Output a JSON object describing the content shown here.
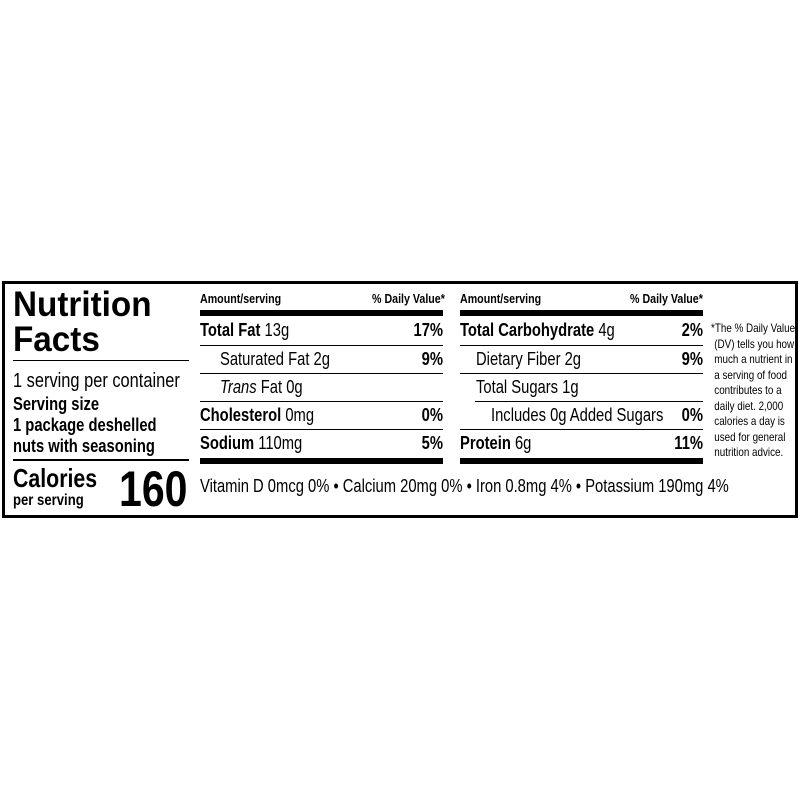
{
  "left": {
    "title_line1": "Nutrition",
    "title_line2": "Facts",
    "servings": "1 serving per container",
    "serving_size_label": "Serving size",
    "serving_size_line1": "1 package deshelled",
    "serving_size_line2": "nuts with seasoning",
    "calories_label": "Calories",
    "calories_sub": "per serving",
    "calories_value": "160"
  },
  "column_headers": {
    "amount": "Amount/serving",
    "dv": "% Daily Value*"
  },
  "middle": [
    {
      "name": "Total Fat",
      "amount": "13g",
      "dv": "17%",
      "bold": true
    },
    {
      "name": "Saturated Fat",
      "amount": "2g",
      "dv": "9%",
      "bold": false
    },
    {
      "name": "Trans",
      "name_suffix": "Fat",
      "amount": "0g",
      "dv": "",
      "bold": false
    },
    {
      "name": "Cholesterol",
      "amount": "0mg",
      "dv": "0%",
      "bold": true
    },
    {
      "name": "Sodium",
      "amount": "110mg",
      "dv": "5%",
      "bold": true
    }
  ],
  "right": [
    {
      "name": "Total Carbohydrate",
      "amount": "4g",
      "dv": "2%",
      "bold": true
    },
    {
      "name": "Dietary Fiber",
      "amount": "2g",
      "dv": "9%",
      "bold": false
    },
    {
      "name": "Total Sugars",
      "amount": "1g",
      "dv": "",
      "bold": false
    },
    {
      "name": "Includes 0g Added Sugars",
      "amount": "",
      "dv": "0%",
      "bold": false
    },
    {
      "name": "Protein",
      "amount": "6g",
      "dv": "11%",
      "bold": true
    }
  ],
  "micronutrients": "Vitamin D 0mcg 0% • Calcium 20mg 0% • Iron 0.8mg 4% • Potassium 190mg 4%",
  "footnote": [
    "*The % Daily Value",
    "(DV) tells you how",
    "much a nutrient in",
    "a serving of food",
    "contributes to a",
    "daily diet. 2,000",
    "calories a day is",
    "used for general",
    "nutrition advice."
  ]
}
